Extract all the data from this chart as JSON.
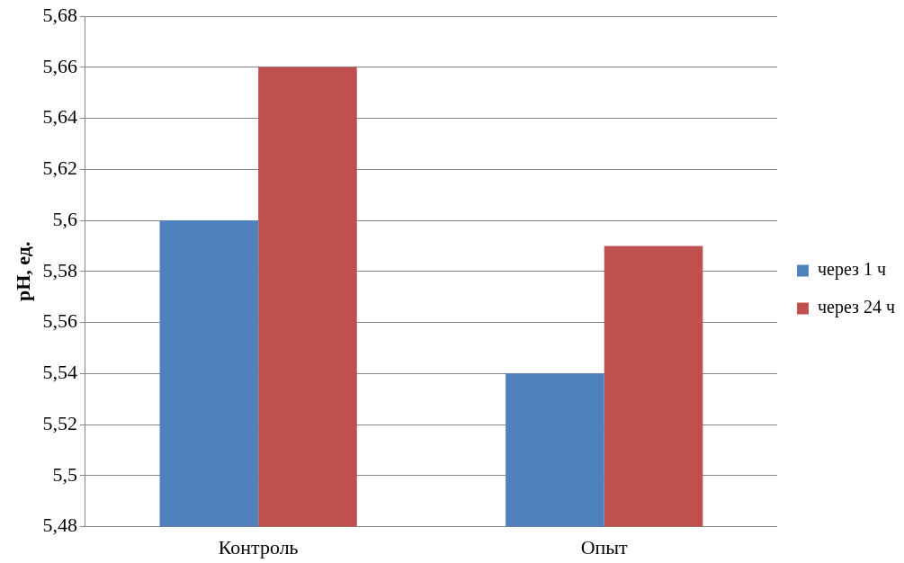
{
  "chart_data": {
    "type": "bar",
    "ylabel": "pH, ед.",
    "categories": [
      "Контроль",
      "Опыт"
    ],
    "series": [
      {
        "name": "через 1 ч",
        "color": "#4f81bd",
        "values": [
          5.6,
          5.54
        ]
      },
      {
        "name": "через 24 ч",
        "color": "#c0504d",
        "values": [
          5.66,
          5.59
        ]
      }
    ],
    "ylim": [
      5.48,
      5.68
    ],
    "yticks": [
      {
        "value": 5.48,
        "label": "5,48"
      },
      {
        "value": 5.5,
        "label": "5,5"
      },
      {
        "value": 5.52,
        "label": "5,52"
      },
      {
        "value": 5.54,
        "label": "5,54"
      },
      {
        "value": 5.56,
        "label": "5,56"
      },
      {
        "value": 5.58,
        "label": "5,58"
      },
      {
        "value": 5.6,
        "label": "5,6"
      },
      {
        "value": 5.62,
        "label": "5,62"
      },
      {
        "value": 5.64,
        "label": "5,64"
      },
      {
        "value": 5.66,
        "label": "5,66"
      },
      {
        "value": 5.68,
        "label": "5,68"
      }
    ],
    "grid": "y",
    "legend": "right"
  }
}
